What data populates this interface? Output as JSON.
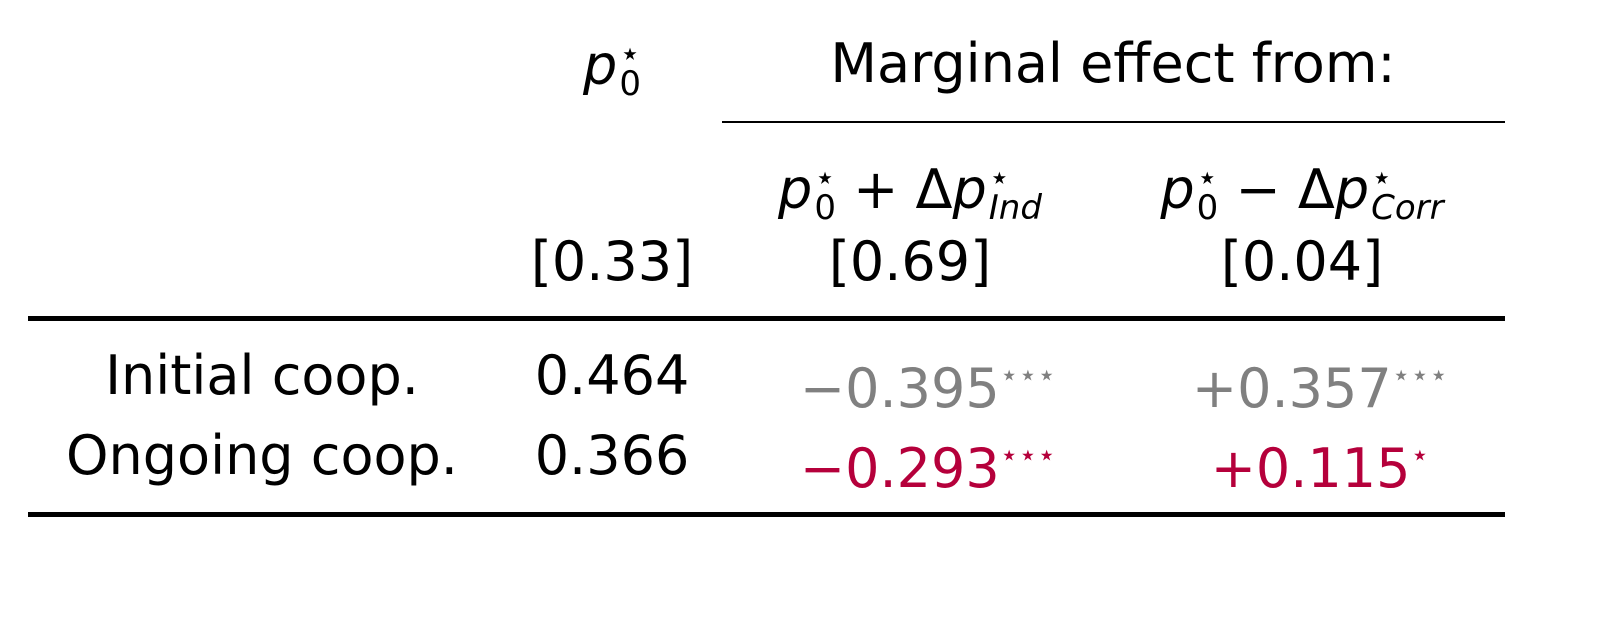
{
  "table": {
    "header": {
      "col1": [
        {
          "base": "p",
          "sub": "0",
          "sup": "⋆"
        }
      ],
      "group": "Marginal effect from:",
      "col2": [
        {
          "base": "p",
          "sub": "0",
          "sup": "⋆"
        },
        {
          "text": " + Δ"
        },
        {
          "base": "p",
          "sub": "Ind",
          "sup": "⋆"
        }
      ],
      "col3": [
        {
          "base": "p",
          "sub": "0",
          "sup": "⋆"
        },
        {
          "text": " − Δ"
        },
        {
          "base": "p",
          "sub": "Corr",
          "sup": "⋆"
        }
      ]
    },
    "baselines": [
      "[0.33]",
      "[0.69]",
      "[0.04]"
    ],
    "rows": [
      {
        "label": "Initial coop.",
        "cells": [
          {
            "text": "0.464"
          },
          {
            "text": "−0.395",
            "stars": "⋆⋆⋆"
          },
          {
            "text": "+0.357",
            "stars": "⋆⋆⋆"
          }
        ]
      },
      {
        "label": "Ongoing coop.",
        "cells": [
          {
            "text": "0.366"
          },
          {
            "text": "−0.293",
            "stars": "⋆⋆⋆"
          },
          {
            "text": "+0.115",
            "stars": "⋆"
          }
        ]
      }
    ]
  }
}
